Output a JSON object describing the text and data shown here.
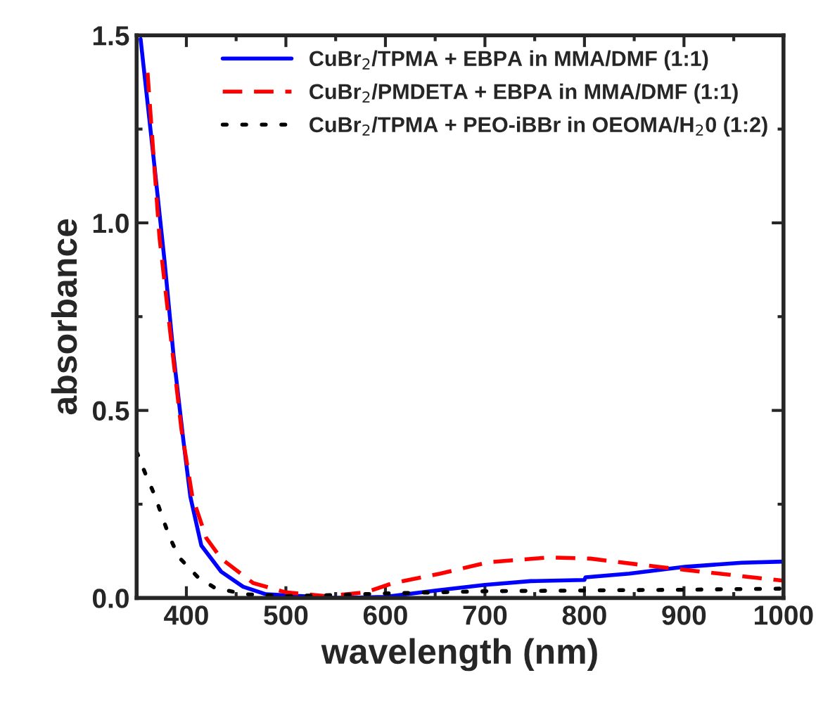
{
  "chart_data": {
    "type": "line",
    "xlabel": "wavelength (nm)",
    "ylabel": "absorbance",
    "xlim": [
      350,
      1000
    ],
    "ylim": [
      0,
      1.5
    ],
    "xticks": [
      400,
      500,
      600,
      700,
      800,
      900,
      1000
    ],
    "yticks": [
      {
        "value": 0,
        "label": "0.0"
      },
      {
        "value": 0.5,
        "label": "0.5"
      },
      {
        "value": 1,
        "label": "1.0"
      },
      {
        "value": 1.5,
        "label": "1.5"
      }
    ],
    "grid": false,
    "legend": "top right",
    "series": [
      {
        "name": "CuBr$_{2}$/TPMA + EBPA in MMA/DMF (1:1)",
        "color": "#0000ff",
        "line_style": "solid",
        "x": [
          354,
          368,
          378,
          387,
          397,
          404,
          415,
          435,
          457,
          480,
          550,
          600,
          651,
          700,
          746,
          800,
          801,
          845,
          901,
          958,
          1000
        ],
        "values": [
          1.49,
          1.15,
          0.9,
          0.65,
          0.42,
          0.27,
          0.14,
          0.07,
          0.03,
          0.01,
          0.0,
          0.003,
          0.02,
          0.035,
          0.045,
          0.048,
          0.055,
          0.065,
          0.083,
          0.094,
          0.097
        ]
      },
      {
        "name": "CuBr$_{2}$/PMDETA + EBPA in MMA/DMF (1:1)",
        "color": "#ff0000",
        "line_style": "dashed",
        "x": [
          361,
          373,
          385,
          395,
          406,
          420,
          435,
          467,
          500,
          540,
          580,
          608,
          655,
          703,
          764,
          806,
          858,
          901,
          952,
          1000
        ],
        "values": [
          1.4,
          0.96,
          0.68,
          0.45,
          0.27,
          0.16,
          0.105,
          0.04,
          0.015,
          0.005,
          0.015,
          0.04,
          0.065,
          0.095,
          0.108,
          0.105,
          0.088,
          0.075,
          0.06,
          0.046
        ]
      },
      {
        "name": "CuBr$_{2}$/TPMA + PEO-iBBr in OEOMA/H$_{2}$0 (1:2)",
        "color": "#000000",
        "line_style": "dotted",
        "x": [
          350,
          359,
          368,
          382,
          392,
          411,
          429,
          460,
          500,
          550,
          600,
          700,
          800,
          900,
          1000
        ],
        "values": [
          0.39,
          0.33,
          0.275,
          0.17,
          0.11,
          0.057,
          0.026,
          0.01,
          0.005,
          0.008,
          0.012,
          0.018,
          0.02,
          0.022,
          0.025
        ]
      }
    ]
  }
}
